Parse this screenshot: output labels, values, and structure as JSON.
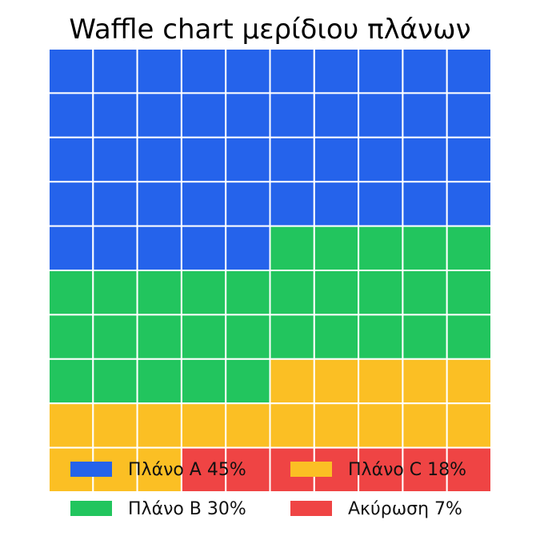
{
  "chart_data": {
    "type": "waffle",
    "title": "Waffle chart μερίδιου πλάνων",
    "rows": 10,
    "cols": 10,
    "series": [
      {
        "name": "Πλάνο A",
        "value": 45,
        "color": "#2563eb",
        "label": "Πλάνο A 45%"
      },
      {
        "name": "Πλάνο B",
        "value": 30,
        "color": "#22c55e",
        "label": "Πλάνο B 30%"
      },
      {
        "name": "Πλάνο C",
        "value": 18,
        "color": "#fbbf24",
        "label": "Πλάνο C 18%"
      },
      {
        "name": "Ακύρωση",
        "value": 7,
        "color": "#ef4444",
        "label": "Ακύρωση 7%"
      }
    ],
    "legend_placement": "bottom"
  }
}
